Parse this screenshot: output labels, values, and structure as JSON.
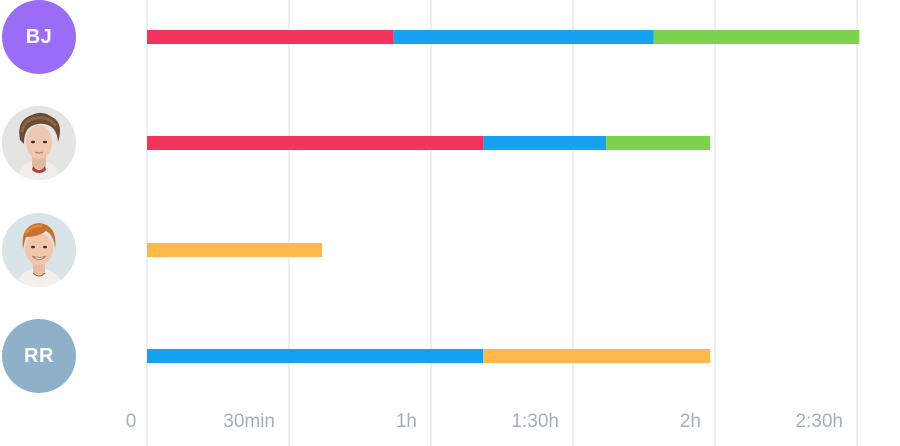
{
  "chart_data": {
    "type": "bar",
    "orientation": "horizontal",
    "stacked": true,
    "title": "",
    "xlabel": "",
    "ylabel": "",
    "x_unit": "minutes",
    "xlim": [
      0,
      150
    ],
    "x_ticks": [
      {
        "value": 0,
        "label": "0"
      },
      {
        "value": 30,
        "label": "30min"
      },
      {
        "value": 60,
        "label": "1h"
      },
      {
        "value": 90,
        "label": "1:30h"
      },
      {
        "value": 120,
        "label": "2h"
      },
      {
        "value": 150,
        "label": "2:30h"
      }
    ],
    "grid": true,
    "legend": "none",
    "categories": [
      {
        "avatar": "initials",
        "initials": "BJ",
        "avatar_color": "#9b6cf6"
      },
      {
        "avatar": "photo",
        "photo_icon": "young-man-photo",
        "avatar_color": "#e2e2e2"
      },
      {
        "avatar": "photo",
        "photo_icon": "smiling-woman-photo",
        "avatar_color": "#dde6ea"
      },
      {
        "avatar": "initials",
        "initials": "RR",
        "avatar_color": "#8fb0c9"
      }
    ],
    "segments": [
      [
        {
          "color": "#f2335b",
          "value": 52
        },
        {
          "color": "#17a1f2",
          "value": 55
        },
        {
          "color": "#7ed04f",
          "value": 43.5
        }
      ],
      [
        {
          "color": "#f2335b",
          "value": 71
        },
        {
          "color": "#17a1f2",
          "value": 26
        },
        {
          "color": "#7ed04f",
          "value": 22
        }
      ],
      [
        {
          "color": "#ffb84a",
          "value": 37
        }
      ],
      [
        {
          "color": "#17a1f2",
          "value": 71
        },
        {
          "color": "#ffb84a",
          "value": 48
        }
      ]
    ],
    "colors": {
      "grid": "#e3ecef",
      "tick_text": "#9fb2c0"
    }
  }
}
